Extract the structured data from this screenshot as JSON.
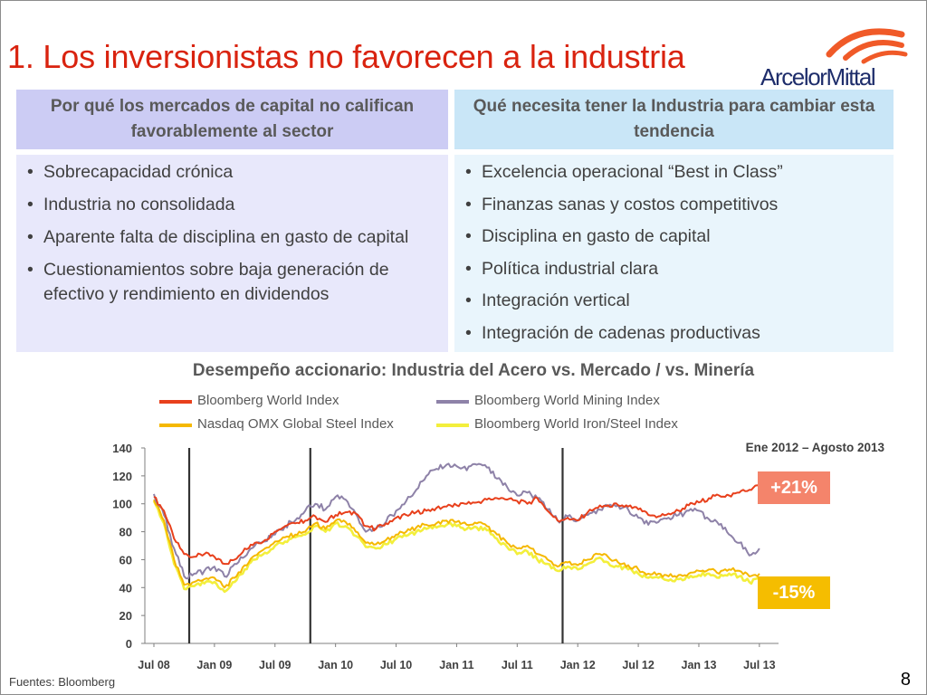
{
  "slide": {
    "title": "1. Los inversionistas no favorecen a la industria",
    "logo_text": "ArcelorMittal",
    "left_box": {
      "heading": "Por qué los mercados de capital no califican favorablemente al sector",
      "bullets": [
        "Sobrecapacidad crónica",
        "Industria no consolidada",
        "Aparente falta de disciplina en gasto de capital",
        "Cuestionamientos sobre baja generación de efectivo y rendimiento en dividendos"
      ]
    },
    "right_box": {
      "heading": "Qué necesita tener la Industria para cambiar esta tendencia",
      "bullets": [
        "Excelencia operacional “Best in Class”",
        "Finanzas sanas y costos competitivos",
        "Disciplina en gasto de capital",
        "Política industrial clara",
        "Integración vertical",
        "Integración de cadenas productivas"
      ]
    },
    "source": "Fuentes: Bloomberg",
    "page_number": "8"
  },
  "colors": {
    "title": "#d9230f",
    "logo_arc": "#f05a28",
    "world_index": "#e8401c",
    "mining_index": "#8e82a8",
    "nasdaq_steel": "#f5b800",
    "iron_steel": "#f3ef3c"
  },
  "icons": {
    "logo": "arcelormittal-logo-arcs-icon"
  },
  "chart_data": {
    "type": "line",
    "title": "Desempeño accionario: Industria del Acero vs. Mercado / vs. Minería",
    "xlabel": "",
    "ylabel": "",
    "ylim": [
      0,
      140
    ],
    "yticks": [
      "0",
      "20",
      "40",
      "60",
      "80",
      "100",
      "120",
      "140"
    ],
    "x_tick_labels": [
      "Jul 08",
      "Jan 09",
      "Jul 09",
      "Jan 10",
      "Jul 10",
      "Jan 11",
      "Jul 11",
      "Jan 12",
      "Jul 12",
      "Jan 13",
      "Jul 13"
    ],
    "x_range_months": [
      0,
      61
    ],
    "grid": false,
    "legend_placement": "top",
    "period_label": "Ene 2012 – Agosto 2013",
    "annotations": [
      {
        "text": "+21%",
        "series": "Bloomberg World Index"
      },
      {
        "text": "-15%",
        "series": "Bloomberg World Iron/Steel Index"
      }
    ],
    "vertical_markers_month": [
      3.5,
      15.5,
      40.5
    ],
    "series": [
      {
        "name": "Bloomberg World Index",
        "color": "#e8401c",
        "x": [
          0,
          1,
          2,
          3,
          4,
          5,
          6,
          7,
          8,
          9,
          10,
          11,
          12,
          13,
          14,
          15,
          16,
          17,
          18,
          19,
          20,
          21,
          22,
          23,
          24,
          25,
          26,
          27,
          28,
          29,
          30,
          31,
          32,
          33,
          34,
          35,
          36,
          37,
          38,
          39,
          40,
          41,
          42,
          43,
          44,
          45,
          46,
          47,
          48,
          49,
          50,
          51,
          52,
          53,
          54,
          55,
          56,
          57,
          58,
          59,
          60
        ],
        "y": [
          105,
          95,
          75,
          64,
          62,
          64,
          62,
          57,
          60,
          68,
          72,
          74,
          80,
          84,
          86,
          88,
          91,
          87,
          92,
          94,
          93,
          84,
          82,
          86,
          90,
          92,
          94,
          95,
          97,
          98,
          99,
          100,
          101,
          103,
          104,
          103,
          102,
          100,
          104,
          95,
          88,
          90,
          88,
          94,
          97,
          99,
          99,
          98,
          96,
          92,
          91,
          93,
          95,
          99,
          101,
          104,
          106,
          106,
          108,
          110,
          113
        ]
      },
      {
        "name": "Bloomberg World Mining Index",
        "color": "#8e82a8",
        "x": [
          0,
          1,
          2,
          3,
          4,
          5,
          6,
          7,
          8,
          9,
          10,
          11,
          12,
          13,
          14,
          15,
          16,
          17,
          18,
          19,
          20,
          21,
          22,
          23,
          24,
          25,
          26,
          27,
          28,
          29,
          30,
          31,
          32,
          33,
          34,
          35,
          36,
          37,
          38,
          39,
          40,
          41,
          42,
          43,
          44,
          45,
          46,
          47,
          48,
          49,
          50,
          51,
          52,
          53,
          54,
          55,
          56,
          57,
          58,
          59,
          60
        ],
        "y": [
          107,
          92,
          68,
          48,
          50,
          52,
          55,
          48,
          57,
          62,
          70,
          73,
          78,
          84,
          88,
          95,
          100,
          96,
          105,
          103,
          93,
          80,
          82,
          87,
          95,
          102,
          110,
          120,
          125,
          128,
          127,
          124,
          128,
          126,
          118,
          112,
          106,
          108,
          104,
          96,
          88,
          91,
          88,
          92,
          96,
          98,
          99,
          96,
          90,
          85,
          87,
          90,
          92,
          95,
          95,
          89,
          85,
          78,
          72,
          63,
          68
        ]
      },
      {
        "name": "Nasdaq OMX Global Steel Index",
        "color": "#f5b800",
        "x": [
          0,
          1,
          2,
          3,
          4,
          5,
          6,
          7,
          8,
          9,
          10,
          11,
          12,
          13,
          14,
          15,
          16,
          17,
          18,
          19,
          20,
          21,
          22,
          23,
          24,
          25,
          26,
          27,
          28,
          29,
          30,
          31,
          32,
          33,
          34,
          35,
          36,
          37,
          38,
          39,
          40,
          41,
          42,
          43,
          44,
          45,
          46,
          47,
          48,
          49,
          50,
          51,
          52,
          53,
          54,
          55,
          56,
          57,
          58,
          59,
          60
        ],
        "y": [
          103,
          88,
          60,
          42,
          44,
          46,
          47,
          40,
          47,
          56,
          63,
          68,
          73,
          76,
          78,
          80,
          86,
          82,
          88,
          87,
          80,
          72,
          71,
          74,
          78,
          80,
          83,
          85,
          86,
          88,
          87,
          85,
          86,
          84,
          78,
          72,
          68,
          70,
          64,
          60,
          55,
          58,
          56,
          60,
          64,
          62,
          58,
          56,
          53,
          50,
          50,
          48,
          49,
          50,
          52,
          53,
          50,
          53,
          52,
          48,
          50
        ]
      },
      {
        "name": "Bloomberg World Iron/Steel Index",
        "color": "#f3ef3c",
        "x": [
          0,
          1,
          2,
          3,
          4,
          5,
          6,
          7,
          8,
          9,
          10,
          11,
          12,
          13,
          14,
          15,
          16,
          17,
          18,
          19,
          20,
          21,
          22,
          23,
          24,
          25,
          26,
          27,
          28,
          29,
          30,
          31,
          32,
          33,
          34,
          35,
          36,
          37,
          38,
          39,
          40,
          41,
          42,
          43,
          44,
          45,
          46,
          47,
          48,
          49,
          50,
          51,
          52,
          53,
          54,
          55,
          56,
          57,
          58,
          59,
          60
        ],
        "y": [
          102,
          86,
          57,
          39,
          41,
          43,
          44,
          37,
          44,
          53,
          60,
          65,
          70,
          73,
          76,
          78,
          84,
          80,
          86,
          84,
          77,
          69,
          68,
          71,
          75,
          77,
          80,
          82,
          83,
          85,
          84,
          82,
          83,
          81,
          75,
          69,
          64,
          66,
          60,
          57,
          52,
          55,
          53,
          57,
          61,
          58,
          55,
          53,
          50,
          47,
          47,
          45,
          46,
          47,
          49,
          50,
          47,
          50,
          48,
          44,
          46
        ]
      }
    ]
  }
}
